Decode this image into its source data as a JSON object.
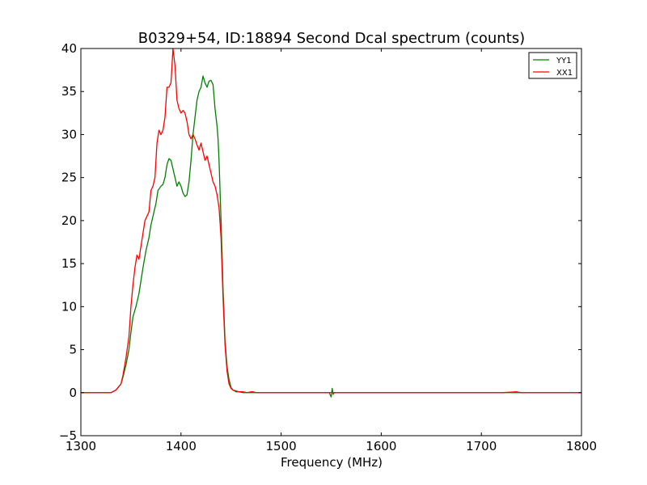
{
  "chart_data": {
    "type": "line",
    "title": "B0329+54, ID:18894 Second Dcal spectrum (counts)",
    "xlabel": "Frequency (MHz)",
    "ylabel": "",
    "xlim": [
      1300,
      1800
    ],
    "ylim": [
      -5,
      40
    ],
    "xticks": [
      1300,
      1400,
      1500,
      1600,
      1700,
      1800
    ],
    "yticks": [
      -5,
      0,
      5,
      10,
      15,
      20,
      25,
      30,
      35,
      40
    ],
    "ytick_labels": [
      "−5",
      "0",
      "5",
      "10",
      "15",
      "20",
      "25",
      "30",
      "35",
      "40"
    ],
    "grid": false,
    "legend_position": "top-right",
    "series": [
      {
        "name": "YY1",
        "color": "#008000",
        "x": [
          1300,
          1310,
          1320,
          1330,
          1335,
          1340,
          1342,
          1345,
          1348,
          1350,
          1352,
          1355,
          1358,
          1360,
          1362,
          1365,
          1368,
          1370,
          1373,
          1375,
          1377,
          1380,
          1382,
          1384,
          1386,
          1388,
          1390,
          1392,
          1394,
          1396,
          1398,
          1400,
          1402,
          1404,
          1406,
          1408,
          1410,
          1412,
          1414,
          1416,
          1418,
          1420,
          1422,
          1424,
          1426,
          1428,
          1430,
          1432,
          1434,
          1436,
          1437,
          1438,
          1440,
          1442,
          1444,
          1446,
          1448,
          1450,
          1452,
          1455,
          1458,
          1462,
          1466,
          1470,
          1475,
          1480,
          1490,
          1500,
          1520,
          1530,
          1540,
          1548,
          1550,
          1551,
          1552,
          1553,
          1555,
          1560,
          1580,
          1600,
          1620,
          1640,
          1660,
          1680,
          1700,
          1720,
          1740,
          1760,
          1780,
          1800
        ],
        "y": [
          0,
          0,
          0,
          0,
          0.3,
          1.0,
          1.8,
          3.2,
          5.0,
          7.0,
          8.8,
          10.0,
          11.5,
          13.0,
          14.5,
          16.5,
          18.0,
          19.5,
          21.0,
          22.0,
          23.5,
          24.0,
          24.2,
          25.0,
          26.5,
          27.2,
          27.0,
          26.0,
          25.0,
          24.0,
          24.5,
          24.0,
          23.2,
          22.8,
          23.0,
          24.5,
          27.0,
          30.0,
          32.0,
          34.0,
          35.0,
          35.5,
          36.8,
          36.0,
          35.5,
          36.2,
          36.3,
          35.8,
          33.0,
          31.0,
          29.5,
          27.0,
          20.0,
          12.0,
          6.0,
          3.0,
          1.5,
          0.6,
          0.3,
          0.1,
          0.1,
          0.0,
          0.0,
          0.0,
          0.0,
          0.0,
          0.0,
          0.0,
          0.0,
          0.0,
          0.0,
          0.0,
          -0.5,
          0.5,
          -0.2,
          0.0,
          0.0,
          0.0,
          0.0,
          0.0,
          0.0,
          0.0,
          0.0,
          0.0,
          0.0,
          0.0,
          0.0,
          0.0,
          0.0,
          0.0
        ]
      },
      {
        "name": "XX1",
        "color": "#ff0000",
        "x": [
          1300,
          1310,
          1320,
          1330,
          1335,
          1340,
          1342,
          1345,
          1348,
          1350,
          1352,
          1354,
          1356,
          1358,
          1360,
          1362,
          1364,
          1366,
          1368,
          1370,
          1372,
          1374,
          1376,
          1378,
          1380,
          1382,
          1384,
          1386,
          1388,
          1390,
          1392,
          1394,
          1396,
          1398,
          1400,
          1402,
          1404,
          1406,
          1408,
          1410,
          1412,
          1414,
          1416,
          1418,
          1420,
          1422,
          1424,
          1426,
          1428,
          1430,
          1432,
          1434,
          1436,
          1438,
          1440,
          1442,
          1444,
          1446,
          1448,
          1450,
          1452,
          1455,
          1458,
          1462,
          1466,
          1470,
          1472,
          1475,
          1480,
          1490,
          1500,
          1530,
          1550,
          1580,
          1600,
          1620,
          1640,
          1660,
          1680,
          1700,
          1720,
          1735,
          1740,
          1760,
          1780,
          1800
        ],
        "y": [
          0,
          0,
          0,
          0,
          0.3,
          1.0,
          2.0,
          4.0,
          6.5,
          10.0,
          12.5,
          14.5,
          16.0,
          15.5,
          17.0,
          18.5,
          20.0,
          20.5,
          21.0,
          23.5,
          24.0,
          25.0,
          29.0,
          30.5,
          30.0,
          30.5,
          32.0,
          35.5,
          35.5,
          36.0,
          40.0,
          38.0,
          34.0,
          33.0,
          32.5,
          32.8,
          32.5,
          31.5,
          30.0,
          29.5,
          30.0,
          29.5,
          28.8,
          28.2,
          29.0,
          28.0,
          27.0,
          27.5,
          26.5,
          25.5,
          24.5,
          24.0,
          23.0,
          21.5,
          18.0,
          11.0,
          5.5,
          2.5,
          1.0,
          0.5,
          0.3,
          0.2,
          0.1,
          0.1,
          0.0,
          0.1,
          0.1,
          0.0,
          0.0,
          0.0,
          0.0,
          0.0,
          0.0,
          0.0,
          0.0,
          0.0,
          0.0,
          0.0,
          0.0,
          0.0,
          0.0,
          0.1,
          0.0,
          0.0,
          0.0,
          0.0
        ]
      }
    ]
  }
}
